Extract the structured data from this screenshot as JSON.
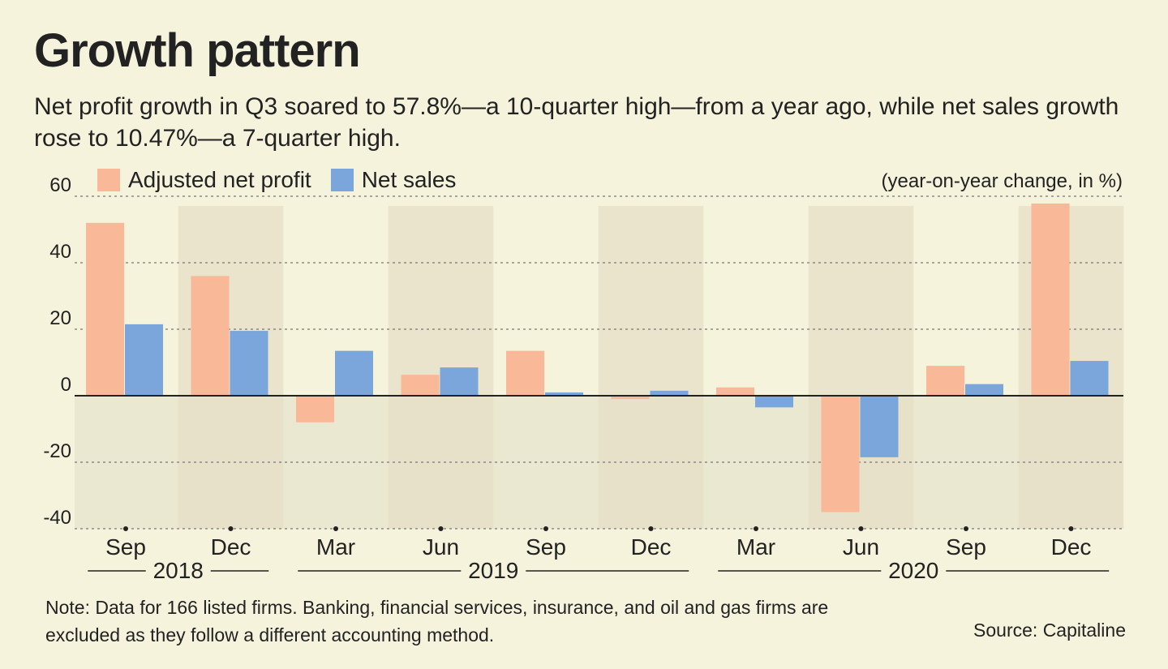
{
  "title": "Growth pattern",
  "subtitle": "Net profit growth in Q3 soared to 57.8%—a 10-quarter high—from a year ago, while net sales growth rose to 10.47%—a 7-quarter high.",
  "units": "(year-on-year change, in %)",
  "note": "Note: Data for 166 listed firms. Banking, financial services, insurance, and oil and gas firms are excluded as they follow a different accounting method.",
  "source": "Source: Capitaline",
  "colors": {
    "profit": "#f9b898",
    "sales": "#7ba6dc",
    "band": "#e4dfc4",
    "neg_bg": "#dcdbc4"
  },
  "chart_data": {
    "type": "bar",
    "categories": [
      "Sep",
      "Dec",
      "Mar",
      "Jun",
      "Sep",
      "Dec",
      "Mar",
      "Jun",
      "Sep",
      "Dec"
    ],
    "years": [
      {
        "label": "2018",
        "from": 0,
        "to": 1
      },
      {
        "label": "2019",
        "from": 2,
        "to": 5
      },
      {
        "label": "2020",
        "from": 6,
        "to": 9
      }
    ],
    "series": [
      {
        "name": "Adjusted net profit",
        "values": [
          52,
          36,
          -8,
          6.3,
          13.5,
          -1,
          2.5,
          -35,
          9,
          57.8
        ]
      },
      {
        "name": "Net sales",
        "values": [
          21.5,
          19.5,
          13.5,
          8.5,
          1,
          1.5,
          -3.5,
          -18.5,
          3.5,
          10.47
        ]
      }
    ],
    "yticks": [
      60,
      40,
      20,
      0,
      -20,
      -40
    ],
    "ylim": [
      -40,
      60
    ],
    "title": "Growth pattern",
    "xlabel": "",
    "ylabel": "(year-on-year change, in %)",
    "legend_position": "top-left"
  }
}
